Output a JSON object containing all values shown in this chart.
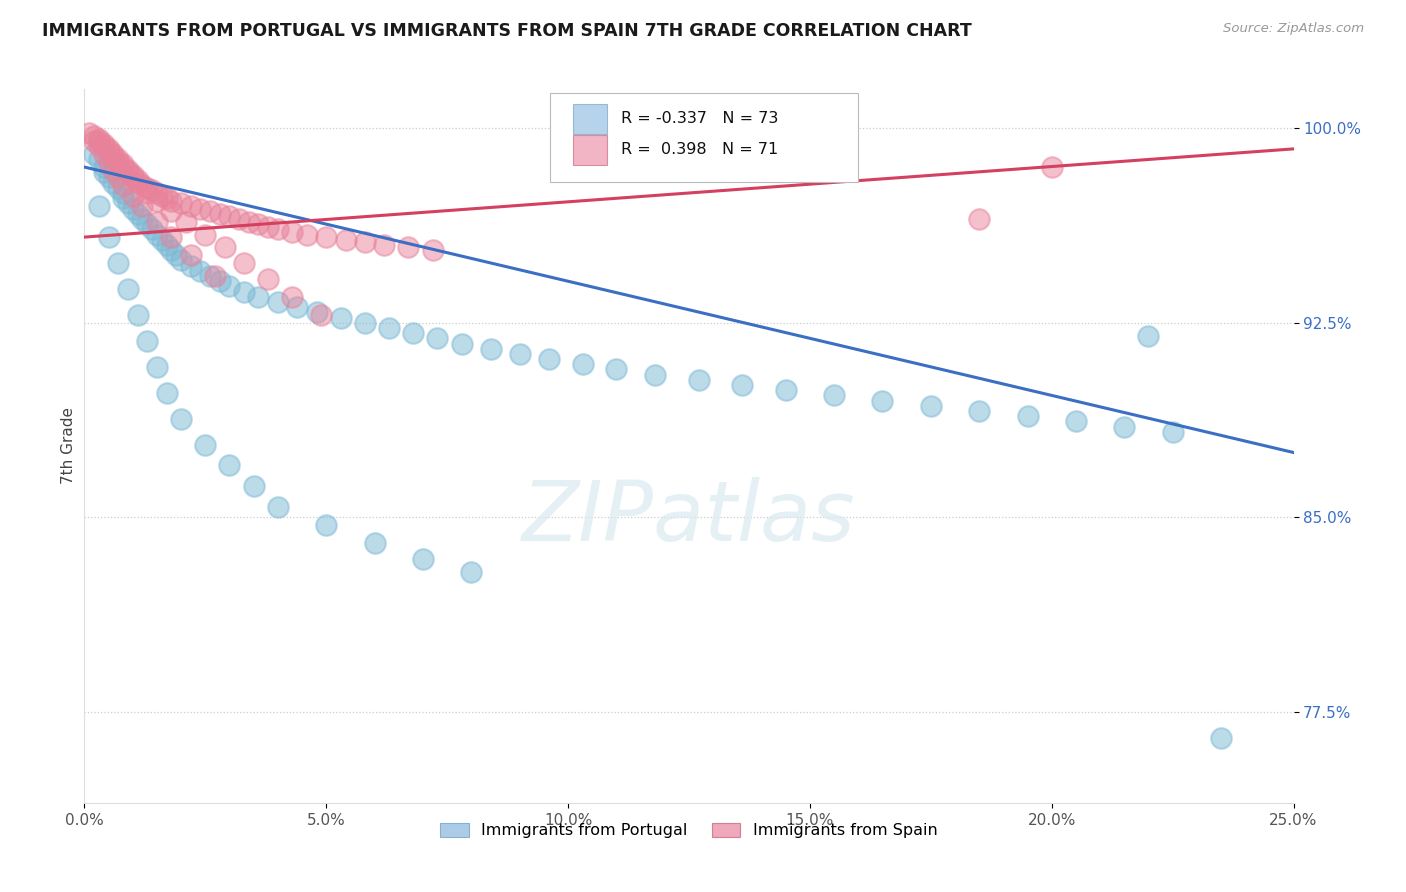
{
  "title": "IMMIGRANTS FROM PORTUGAL VS IMMIGRANTS FROM SPAIN 7TH GRADE CORRELATION CHART",
  "source": "Source: ZipAtlas.com",
  "ylabel": "7th Grade",
  "r_portugal": -0.337,
  "n_portugal": 73,
  "r_spain": 0.398,
  "n_spain": 71,
  "portugal_color": "#7bb8d4",
  "spain_color": "#e8829a",
  "trend_portugal_color": "#3a6fc4",
  "trend_spain_color": "#d44060",
  "background_color": "#ffffff",
  "watermark_text": "ZIPatlas",
  "xlim": [
    0.0,
    0.25
  ],
  "ylim": [
    0.74,
    1.015
  ],
  "yticks": [
    0.775,
    0.85,
    0.925,
    1.0
  ],
  "ytick_labels": [
    "77.5%",
    "85.0%",
    "92.5%",
    "100.0%"
  ],
  "xticks": [
    0.0,
    0.05,
    0.1,
    0.15,
    0.2,
    0.25
  ],
  "xtick_labels": [
    "0.0%",
    "5.0%",
    "10.0%",
    "15.0%",
    "20.0%",
    "25.0%"
  ],
  "legend_label_portugal": "Immigrants from Portugal",
  "legend_label_spain": "Immigrants from Spain",
  "legend_color_portugal": "#aacce8",
  "legend_color_spain": "#f0a8bc",
  "pt_x": [
    0.002,
    0.003,
    0.004,
    0.004,
    0.005,
    0.006,
    0.007,
    0.008,
    0.008,
    0.009,
    0.01,
    0.011,
    0.012,
    0.013,
    0.014,
    0.015,
    0.016,
    0.017,
    0.018,
    0.019,
    0.02,
    0.022,
    0.024,
    0.026,
    0.028,
    0.03,
    0.033,
    0.036,
    0.04,
    0.044,
    0.048,
    0.053,
    0.058,
    0.063,
    0.068,
    0.073,
    0.078,
    0.084,
    0.09,
    0.096,
    0.103,
    0.11,
    0.118,
    0.127,
    0.136,
    0.145,
    0.155,
    0.165,
    0.175,
    0.185,
    0.195,
    0.205,
    0.215,
    0.225,
    0.003,
    0.005,
    0.007,
    0.009,
    0.011,
    0.013,
    0.015,
    0.017,
    0.02,
    0.025,
    0.03,
    0.035,
    0.04,
    0.05,
    0.06,
    0.07,
    0.08,
    0.22,
    0.235
  ],
  "pt_y": [
    0.99,
    0.988,
    0.985,
    0.983,
    0.981,
    0.979,
    0.977,
    0.975,
    0.973,
    0.971,
    0.969,
    0.967,
    0.965,
    0.963,
    0.961,
    0.959,
    0.957,
    0.955,
    0.953,
    0.951,
    0.949,
    0.947,
    0.945,
    0.943,
    0.941,
    0.939,
    0.937,
    0.935,
    0.933,
    0.931,
    0.929,
    0.927,
    0.925,
    0.923,
    0.921,
    0.919,
    0.917,
    0.915,
    0.913,
    0.911,
    0.909,
    0.907,
    0.905,
    0.903,
    0.901,
    0.899,
    0.897,
    0.895,
    0.893,
    0.891,
    0.889,
    0.887,
    0.885,
    0.883,
    0.97,
    0.958,
    0.948,
    0.938,
    0.928,
    0.918,
    0.908,
    0.898,
    0.888,
    0.878,
    0.87,
    0.862,
    0.854,
    0.847,
    0.84,
    0.834,
    0.829,
    0.92,
    0.765
  ],
  "sp_x": [
    0.001,
    0.002,
    0.003,
    0.003,
    0.004,
    0.004,
    0.005,
    0.005,
    0.006,
    0.006,
    0.007,
    0.007,
    0.008,
    0.008,
    0.009,
    0.009,
    0.01,
    0.01,
    0.011,
    0.011,
    0.012,
    0.013,
    0.014,
    0.015,
    0.016,
    0.017,
    0.018,
    0.02,
    0.022,
    0.024,
    0.026,
    0.028,
    0.03,
    0.032,
    0.034,
    0.036,
    0.038,
    0.04,
    0.043,
    0.046,
    0.05,
    0.054,
    0.058,
    0.062,
    0.067,
    0.072,
    0.013,
    0.015,
    0.018,
    0.021,
    0.025,
    0.029,
    0.033,
    0.038,
    0.043,
    0.049,
    0.002,
    0.003,
    0.004,
    0.005,
    0.006,
    0.007,
    0.008,
    0.01,
    0.012,
    0.015,
    0.018,
    0.022,
    0.027,
    0.2,
    0.185
  ],
  "sp_y": [
    0.998,
    0.997,
    0.996,
    0.995,
    0.994,
    0.993,
    0.992,
    0.991,
    0.99,
    0.989,
    0.988,
    0.987,
    0.986,
    0.985,
    0.984,
    0.983,
    0.982,
    0.981,
    0.98,
    0.979,
    0.978,
    0.977,
    0.976,
    0.975,
    0.974,
    0.973,
    0.972,
    0.971,
    0.97,
    0.969,
    0.968,
    0.967,
    0.966,
    0.965,
    0.964,
    0.963,
    0.962,
    0.961,
    0.96,
    0.959,
    0.958,
    0.957,
    0.956,
    0.955,
    0.954,
    0.953,
    0.975,
    0.972,
    0.968,
    0.964,
    0.959,
    0.954,
    0.948,
    0.942,
    0.935,
    0.928,
    0.995,
    0.993,
    0.99,
    0.987,
    0.984,
    0.981,
    0.978,
    0.974,
    0.97,
    0.964,
    0.958,
    0.951,
    0.943,
    0.985,
    0.965
  ]
}
